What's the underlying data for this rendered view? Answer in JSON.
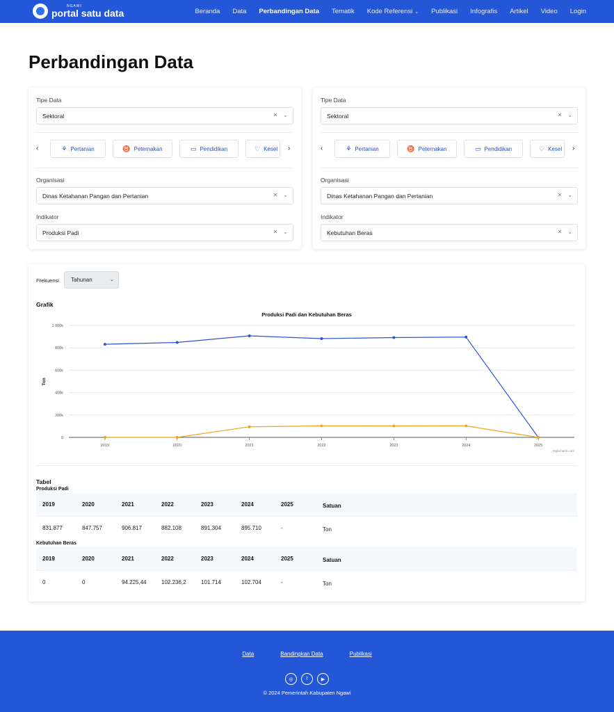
{
  "nav": {
    "logo_small": "NGAWI",
    "logo_big": "portal satu data",
    "items": [
      {
        "label": "Beranda"
      },
      {
        "label": "Data"
      },
      {
        "label": "Perbandingan Data"
      },
      {
        "label": "Tematik"
      },
      {
        "label": "Kode Referensi"
      },
      {
        "label": "Publikasi"
      },
      {
        "label": "Infografis"
      },
      {
        "label": "Artikel"
      },
      {
        "label": "Video"
      },
      {
        "label": "Login"
      }
    ]
  },
  "page_title": "Perbandingan Data",
  "panels": [
    {
      "tipe_label": "Tipe Data",
      "tipe_value": "Sektoral",
      "categories": [
        "Pertanian",
        "Peternakan",
        "Pendidikan",
        "Kesel"
      ],
      "org_label": "Organisasi",
      "org_value": "Dinas Ketahanan Pangan dan Pertanian",
      "ind_label": "Indikator",
      "ind_value": "Produksi Padi"
    },
    {
      "tipe_label": "Tipe Data",
      "tipe_value": "Sektoral",
      "categories": [
        "Pertanian",
        "Peternakan",
        "Pendidikan",
        "Kesel"
      ],
      "org_label": "Organisasi",
      "org_value": "Dinas Ketahanan Pangan dan Pertanian",
      "ind_label": "Indikator",
      "ind_value": "Kebutuhan Beras"
    }
  ],
  "frekuensi": {
    "label": "Frekuensi",
    "value": "Tahunan"
  },
  "grafik_label": "Grafik",
  "chart_data": {
    "type": "line",
    "title": "Produksi Padi dan Kebutuhan Beras",
    "ylabel": "Ton",
    "xlabel": "",
    "categories": [
      "2019",
      "2020",
      "2021",
      "2022",
      "2023",
      "2024",
      "2025"
    ],
    "yticks": [
      "0",
      "200k",
      "400k",
      "600k",
      "800k",
      "1 000k"
    ],
    "ylim": [
      0,
      1000000
    ],
    "series": [
      {
        "values": [
          831877,
          847757,
          906817,
          882108,
          891304,
          895710,
          0
        ],
        "color": "#2a56d6"
      },
      {
        "values": [
          0,
          0,
          94225.44,
          102236.2,
          101714,
          102704,
          0
        ],
        "color": "#f0a51b"
      }
    ],
    "credit": "Highcharts.com",
    "grid": true
  },
  "tabel": {
    "label": "Tabel",
    "tables": [
      {
        "name": "Produksi Padi",
        "years": [
          "2019",
          "2020",
          "2021",
          "2022",
          "2023",
          "2024",
          "2025"
        ],
        "satuan_label": "Satuan",
        "values": [
          "831.877",
          "847.757",
          "906.817",
          "882.108",
          "891.304",
          "895.710",
          "-"
        ],
        "satuan": "Ton"
      },
      {
        "name": "Kebutuhan Beras",
        "years": [
          "2019",
          "2020",
          "2021",
          "2022",
          "2023",
          "2024",
          "2025"
        ],
        "satuan_label": "Satuan",
        "values": [
          "0",
          "0",
          "94.225,44",
          "102.236,2",
          "101.714",
          "102.704",
          "-"
        ],
        "satuan": "Ton"
      }
    ]
  },
  "footer": {
    "links": [
      {
        "label": "Data"
      },
      {
        "label": "Bandingkan Data"
      },
      {
        "label": "Publikasi"
      }
    ],
    "socials": [
      "instagram-icon",
      "facebook-icon",
      "youtube-icon"
    ],
    "copyright": "© 2024 Pemerintah Kabupaten Ngawi"
  }
}
